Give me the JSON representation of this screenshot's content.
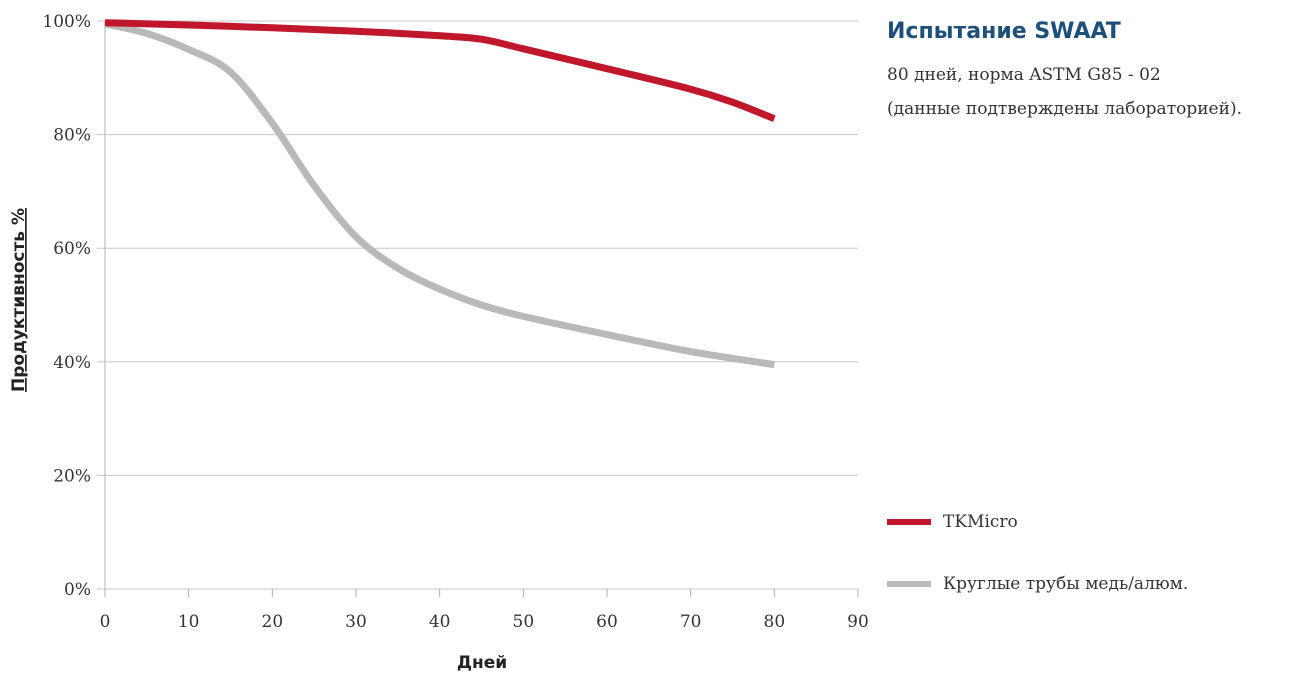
{
  "info": {
    "title": "Испытание SWAAT",
    "line1": "80 дней, норма ASTM G85 - 02",
    "line2": "(данные подтверждены лабораторией)."
  },
  "chart_data": {
    "type": "line",
    "xlabel": "Дней",
    "ylabel": "Продуктивность %",
    "xlim": [
      0,
      90
    ],
    "ylim": [
      0,
      100
    ],
    "x_ticks": [
      "0",
      "10",
      "20",
      "30",
      "40",
      "50",
      "60",
      "70",
      "80",
      "90"
    ],
    "y_ticks": [
      "0%",
      "20%",
      "40%",
      "60%",
      "80%",
      "100%"
    ],
    "grid": "horizontal",
    "legend_position": "bottom-right",
    "series": [
      {
        "name": "TKMicro",
        "color": "#c0172a",
        "x": [
          0,
          10,
          20,
          30,
          40,
          45,
          50,
          60,
          70,
          75,
          80
        ],
        "y": [
          99.7,
          99.3,
          98.8,
          98.2,
          97.4,
          96.8,
          95.1,
          91.6,
          88.0,
          85.7,
          82.8
        ]
      },
      {
        "name": "Круглые трубы медь/алюм.",
        "color": "#b9b9b9",
        "x": [
          0,
          5,
          10,
          15,
          20,
          25,
          30,
          35,
          40,
          45,
          50,
          60,
          70,
          80
        ],
        "y": [
          99.5,
          97.8,
          95.0,
          91.0,
          82.0,
          71.0,
          62.0,
          56.5,
          52.8,
          50.0,
          48.0,
          44.8,
          41.8,
          39.5
        ]
      }
    ]
  }
}
